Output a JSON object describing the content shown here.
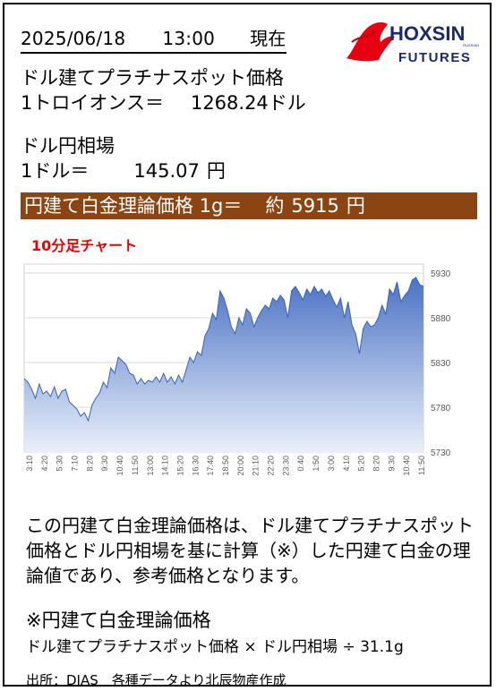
{
  "header": {
    "date": "2025/06/18",
    "time": "13:00",
    "now_label": "現在",
    "logo_text": "HOXSIN",
    "logo_sub": "FUTURES",
    "logo_small": "RUSSIAN"
  },
  "platinum": {
    "label": "ドル建てプラチナスポット価格",
    "unit_label": "1トロイオンス＝",
    "value": "1268.24",
    "unit": "ドル"
  },
  "fx": {
    "label": "ドル円相場",
    "unit_label": "1ドル＝",
    "value": "145.07",
    "unit": "円"
  },
  "banner": {
    "label": "円建て白金理論価格 1g＝",
    "approx": "約",
    "value": "5915",
    "unit": "円"
  },
  "chart_title": "10分足チャート",
  "colors": {
    "banner_bg": "#8B4513",
    "chart_title": "#e60000",
    "area_top": "#4a72c4",
    "area_bottom": "#eaf0fa",
    "logo_red": "#e60012",
    "logo_navy": "#1a2a6c"
  },
  "chart_data": {
    "type": "area",
    "title": "10分足チャート",
    "xlabel": "",
    "ylabel": "",
    "ylim": [
      5730,
      5940
    ],
    "yticks": [
      5730,
      5780,
      5830,
      5880,
      5930
    ],
    "grid": true,
    "x_tick_labels": [
      "3:10",
      "4:20",
      "5:30",
      "7:10",
      "8:20",
      "9:30",
      "10:40",
      "11:50",
      "13:00",
      "14:10",
      "15:20",
      "16:30",
      "17:40",
      "18:50",
      "20:00",
      "21:10",
      "22:20",
      "23:30",
      "0:40",
      "1:50",
      "3:00",
      "4:10",
      "5:20",
      "8:20",
      "9:30",
      "10:40",
      "11:50"
    ],
    "x": [
      "3:10",
      "3:30",
      "3:50",
      "4:10",
      "4:20",
      "4:40",
      "5:00",
      "5:20",
      "5:30",
      "5:50",
      "6:10",
      "7:10",
      "7:30",
      "7:50",
      "8:10",
      "8:20",
      "8:40",
      "9:00",
      "9:20",
      "9:30",
      "9:50",
      "10:10",
      "10:30",
      "10:40",
      "11:00",
      "11:20",
      "11:40",
      "11:50",
      "12:10",
      "12:30",
      "12:50",
      "13:00",
      "13:20",
      "13:40",
      "14:00",
      "14:10",
      "14:30",
      "14:50",
      "15:10",
      "15:20",
      "15:40",
      "16:00",
      "16:20",
      "16:30",
      "16:50",
      "17:10",
      "17:30",
      "17:40",
      "18:00",
      "18:20",
      "18:40",
      "18:50",
      "19:10",
      "19:30",
      "19:50",
      "20:00",
      "20:20",
      "20:40",
      "21:00",
      "21:10",
      "21:30",
      "21:50",
      "22:10",
      "22:20",
      "22:40",
      "23:00",
      "23:20",
      "23:30",
      "23:50",
      "0:10",
      "0:30",
      "0:40",
      "1:00",
      "1:20",
      "1:40",
      "1:50",
      "2:10",
      "2:30",
      "2:50",
      "3:00",
      "3:20",
      "3:40",
      "4:00",
      "4:10",
      "4:30",
      "4:50",
      "5:10",
      "5:20",
      "5:40",
      "6:00",
      "6:20",
      "8:20",
      "8:40",
      "9:00",
      "9:20",
      "9:30",
      "9:50",
      "10:10",
      "10:30",
      "10:40",
      "11:00",
      "11:20",
      "11:40",
      "11:50",
      "12:10",
      "12:30",
      "12:50"
    ],
    "values": [
      5812,
      5808,
      5800,
      5790,
      5806,
      5795,
      5798,
      5792,
      5803,
      5790,
      5798,
      5800,
      5786,
      5782,
      5778,
      5770,
      5774,
      5765,
      5782,
      5790,
      5796,
      5808,
      5802,
      5824,
      5818,
      5836,
      5832,
      5828,
      5818,
      5816,
      5806,
      5812,
      5806,
      5810,
      5808,
      5814,
      5808,
      5818,
      5808,
      5814,
      5806,
      5816,
      5808,
      5822,
      5836,
      5830,
      5842,
      5838,
      5860,
      5868,
      5885,
      5878,
      5910,
      5902,
      5888,
      5870,
      5862,
      5880,
      5872,
      5890,
      5885,
      5870,
      5880,
      5888,
      5894,
      5890,
      5902,
      5898,
      5905,
      5900,
      5880,
      5910,
      5915,
      5908,
      5900,
      5912,
      5906,
      5915,
      5908,
      5912,
      5904,
      5910,
      5900,
      5892,
      5902,
      5880,
      5898,
      5872,
      5862,
      5840,
      5868,
      5876,
      5870,
      5872,
      5880,
      5894,
      5884,
      5912,
      5906,
      5920,
      5898,
      5905,
      5910,
      5922,
      5925,
      5917,
      5915
    ]
  },
  "description": "この円建て白金理論価格は、ドル建てプラチナスポット価格とドル円相場を基に計算（※）した円建て白金の理論値であり、参考価格となります。",
  "formula": {
    "title": "※円建て白金理論価格",
    "text": "ドル建てプラチナスポット価格 × ドル円相場 ÷ 31.1g"
  },
  "source": "出所：DIAS　各種データより北辰物産作成"
}
